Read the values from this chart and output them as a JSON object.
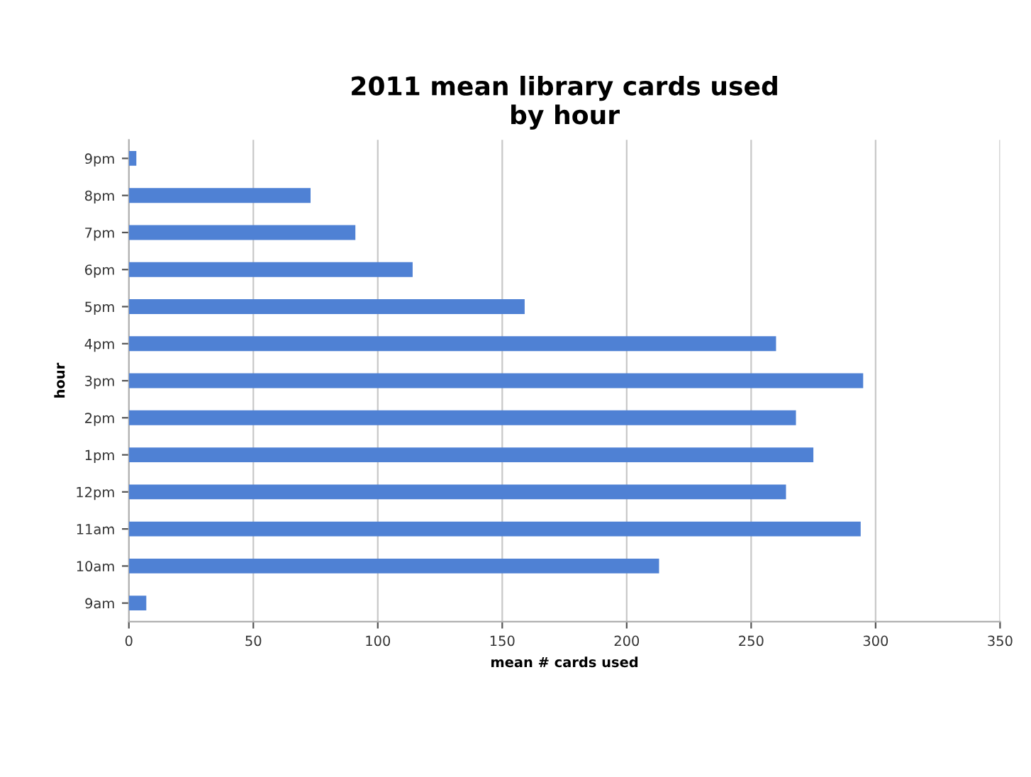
{
  "chart_data": {
    "type": "bar",
    "orientation": "horizontal",
    "title": "2011 mean library cards used\nby hour",
    "xlabel": "mean # cards used",
    "ylabel": "hour",
    "categories": [
      "9pm",
      "8pm",
      "7pm",
      "6pm",
      "5pm",
      "4pm",
      "3pm",
      "2pm",
      "1pm",
      "12pm",
      "11am",
      "10am",
      "9am"
    ],
    "values": [
      3,
      73,
      91,
      114,
      159,
      260,
      295,
      268,
      275,
      264,
      294,
      213,
      7
    ],
    "color": "#4f81d4",
    "xlim": [
      0,
      350
    ],
    "xticks": [
      0,
      50,
      100,
      150,
      200,
      250,
      300,
      350
    ],
    "grid": "x"
  }
}
